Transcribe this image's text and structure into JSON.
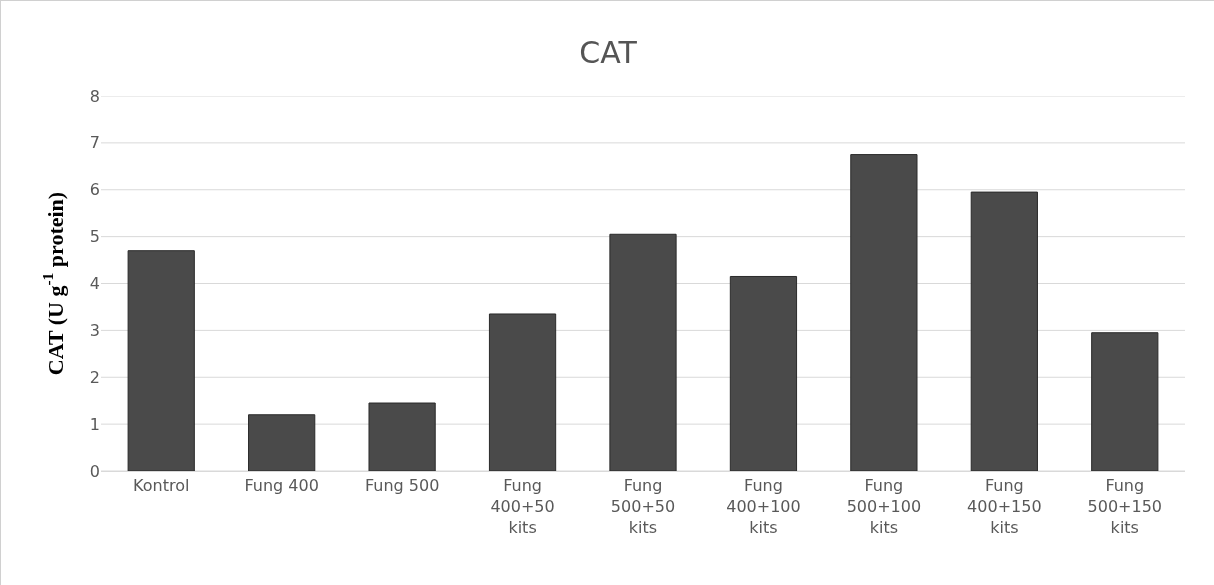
{
  "chart_data": {
    "type": "bar",
    "title": "CAT",
    "ylabel": "CAT (U g$^{-1}$ protein)",
    "categories": [
      "Kontrol",
      "Fung 400",
      "Fung 500",
      "Fung 400+50 kits",
      "Fung 500+50 kits",
      "Fung 400+100 kits",
      "Fung 500+100 kits",
      "Fung 400+150 kits",
      "Fung 500+150 kits"
    ],
    "values": [
      4.7,
      1.2,
      1.45,
      3.35,
      5.05,
      4.15,
      6.75,
      5.95,
      2.95
    ],
    "color": "#4a4a4a",
    "ylim": [
      0,
      8
    ],
    "yticks": [
      0,
      1,
      2,
      3,
      4,
      5,
      6,
      7,
      8
    ],
    "grid": "y"
  }
}
